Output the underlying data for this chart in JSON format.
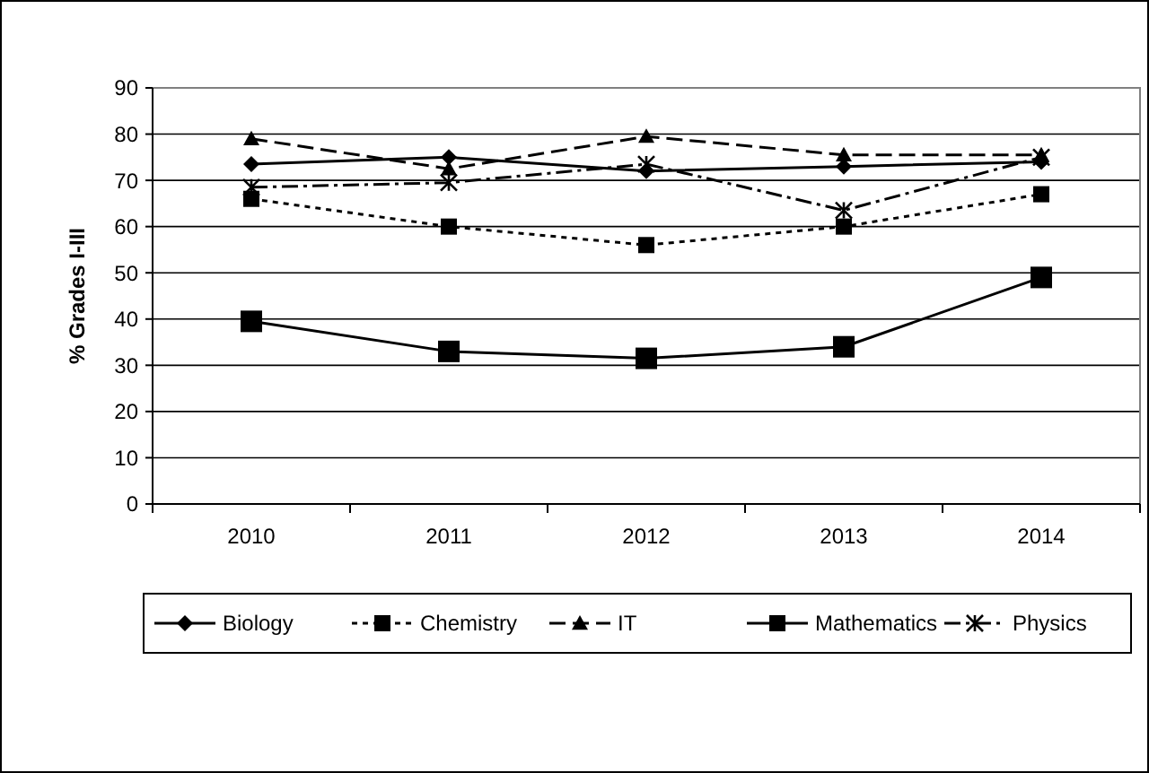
{
  "chart_data": {
    "type": "line",
    "ylabel": "% Grades I-III",
    "categories": [
      "2010",
      "2011",
      "2012",
      "2013",
      "2014"
    ],
    "ylim": [
      0,
      90
    ],
    "yticks": [
      0,
      10,
      20,
      30,
      40,
      50,
      60,
      70,
      80,
      90
    ],
    "grid": "y",
    "legend": "bottom",
    "series": [
      {
        "name": "Biology",
        "color": "#000000",
        "marker": "diamond",
        "line_style": "solid",
        "values": [
          73.5,
          75,
          72,
          73,
          74
        ]
      },
      {
        "name": "Chemistry",
        "color": "#000000",
        "marker": "square",
        "line_style": "dotted",
        "values": [
          66,
          60,
          56,
          60,
          67
        ]
      },
      {
        "name": "IT",
        "color": "#000000",
        "marker": "triangle",
        "line_style": "dashed",
        "values": [
          79,
          72.5,
          79.5,
          75.5,
          75.5
        ]
      },
      {
        "name": "Mathematics",
        "color": "#000000",
        "marker": "square",
        "line_style": "solid",
        "values": [
          39.5,
          33,
          31.5,
          34,
          49
        ]
      },
      {
        "name": "Physics",
        "color": "#000000",
        "marker": "cross",
        "line_style": "dashdot",
        "values": [
          68.5,
          69.5,
          73.5,
          63.5,
          75
        ]
      }
    ]
  }
}
